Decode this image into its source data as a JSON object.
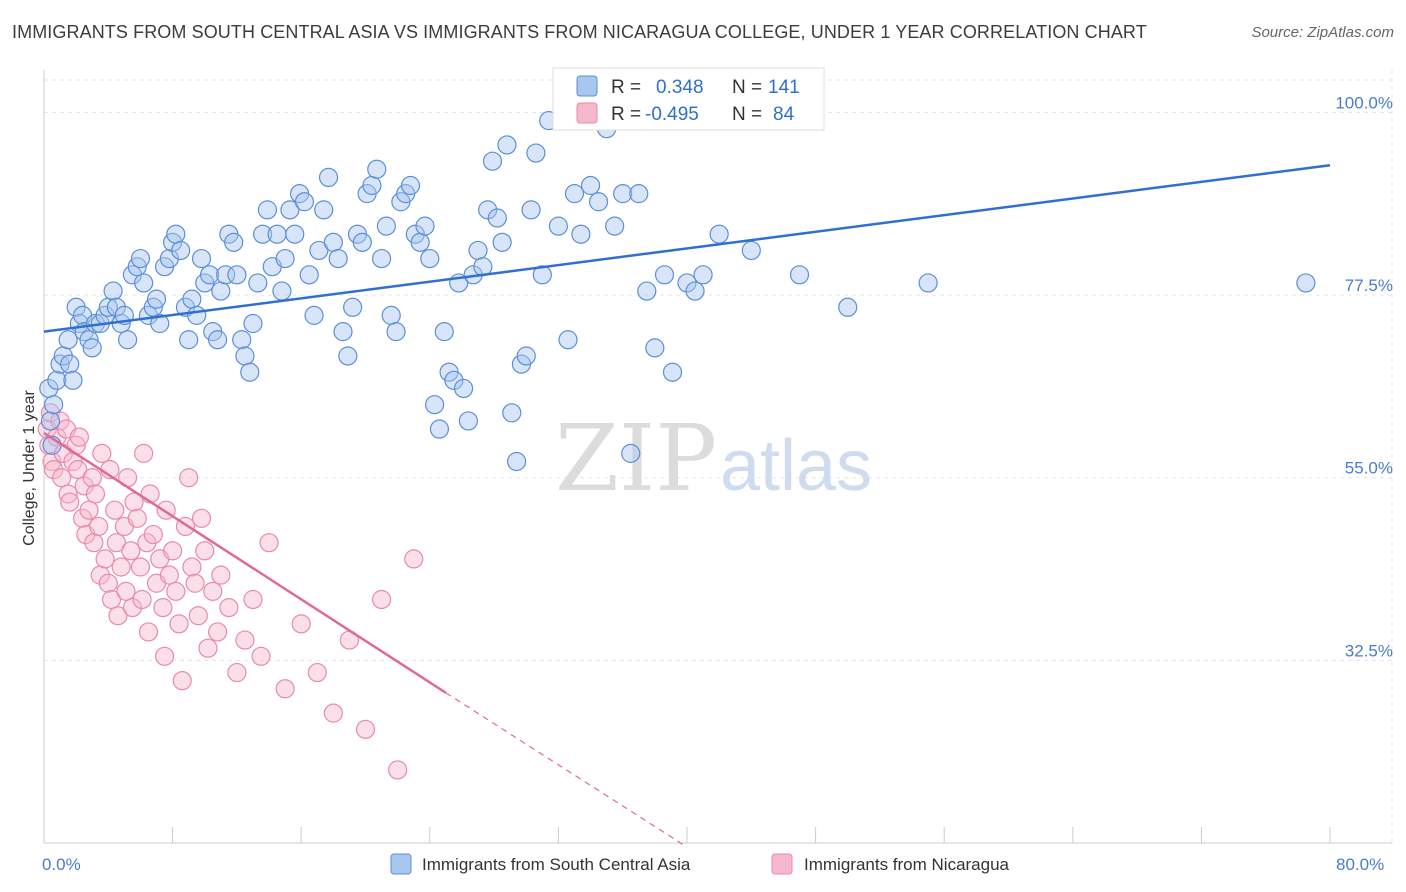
{
  "header": {
    "title": "IMMIGRANTS FROM SOUTH CENTRAL ASIA VS IMMIGRANTS FROM NICARAGUA COLLEGE, UNDER 1 YEAR CORRELATION CHART",
    "source": "Source: ZipAtlas.com"
  },
  "watermark": {
    "zip": "ZIP",
    "atlas": "atlas"
  },
  "legend": {
    "r_label": "R =",
    "n_label": "N =",
    "blue": {
      "r": "0.348",
      "n": "141"
    },
    "pink": {
      "r": "-0.495",
      "n": "84"
    }
  },
  "colors": {
    "blue_fill": "#a9c6ef",
    "blue_stroke": "#5b8fd8",
    "blue_line": "#2f6fd0",
    "pink_fill": "#f6b9cc",
    "pink_stroke": "#e98aaa",
    "pink_line": "#e06a93"
  },
  "chart_data": {
    "type": "scatter",
    "title": "IMMIGRANTS FROM SOUTH CENTRAL ASIA VS IMMIGRANTS FROM NICARAGUA COLLEGE, UNDER 1 YEAR CORRELATION CHART",
    "xlabel": "",
    "ylabel": "College, Under 1 year",
    "xlim": [
      0,
      80
    ],
    "ylim": [
      10,
      104
    ],
    "x_tick_labels": [
      "0.0%",
      "80.0%"
    ],
    "y_ticks": [
      32.5,
      55.0,
      77.5,
      100.0
    ],
    "y_tick_labels": [
      "32.5%",
      "55.0%",
      "77.5%",
      "100.0%"
    ],
    "grid": true,
    "legend_position": "top-center",
    "series": [
      {
        "name": "Immigrants from South Central Asia",
        "color": "#5b8fd8",
        "trend": {
          "x": [
            0,
            80
          ],
          "y": [
            73.0,
            93.5
          ]
        },
        "points": [
          [
            0.3,
            66
          ],
          [
            0.4,
            62
          ],
          [
            0.5,
            59
          ],
          [
            0.6,
            64
          ],
          [
            0.8,
            67
          ],
          [
            1.0,
            69
          ],
          [
            1.2,
            70
          ],
          [
            1.5,
            72
          ],
          [
            1.6,
            69
          ],
          [
            1.8,
            67
          ],
          [
            2.0,
            76
          ],
          [
            2.2,
            74
          ],
          [
            2.4,
            75
          ],
          [
            2.5,
            73
          ],
          [
            2.8,
            72
          ],
          [
            3.0,
            71
          ],
          [
            3.2,
            74
          ],
          [
            3.5,
            74
          ],
          [
            3.8,
            75
          ],
          [
            4.0,
            76
          ],
          [
            4.3,
            78
          ],
          [
            4.5,
            76
          ],
          [
            4.8,
            74
          ],
          [
            5.0,
            75
          ],
          [
            5.2,
            72
          ],
          [
            5.5,
            80
          ],
          [
            5.8,
            81
          ],
          [
            6.0,
            82
          ],
          [
            6.2,
            79
          ],
          [
            6.5,
            75
          ],
          [
            6.8,
            76
          ],
          [
            7.0,
            77
          ],
          [
            7.2,
            74
          ],
          [
            7.5,
            81
          ],
          [
            7.8,
            82
          ],
          [
            8.0,
            84
          ],
          [
            8.2,
            85
          ],
          [
            8.5,
            83
          ],
          [
            8.8,
            76
          ],
          [
            9.0,
            72
          ],
          [
            9.2,
            77
          ],
          [
            9.5,
            75
          ],
          [
            9.8,
            82
          ],
          [
            10.0,
            79
          ],
          [
            10.3,
            80
          ],
          [
            10.5,
            73
          ],
          [
            10.8,
            72
          ],
          [
            11.0,
            78
          ],
          [
            11.3,
            80
          ],
          [
            11.5,
            85
          ],
          [
            11.8,
            84
          ],
          [
            12.0,
            80
          ],
          [
            12.3,
            72
          ],
          [
            12.5,
            70
          ],
          [
            12.8,
            68
          ],
          [
            13.0,
            74
          ],
          [
            13.3,
            79
          ],
          [
            13.6,
            85
          ],
          [
            13.9,
            88
          ],
          [
            14.2,
            81
          ],
          [
            14.5,
            85
          ],
          [
            14.8,
            78
          ],
          [
            15.0,
            82
          ],
          [
            15.3,
            88
          ],
          [
            15.6,
            85
          ],
          [
            15.9,
            90
          ],
          [
            16.2,
            89
          ],
          [
            16.5,
            80
          ],
          [
            16.8,
            75
          ],
          [
            17.1,
            83
          ],
          [
            17.4,
            88
          ],
          [
            17.7,
            92
          ],
          [
            18.0,
            84
          ],
          [
            18.3,
            82
          ],
          [
            18.6,
            73
          ],
          [
            18.9,
            70
          ],
          [
            19.2,
            76
          ],
          [
            19.5,
            85
          ],
          [
            19.8,
            84
          ],
          [
            20.1,
            90
          ],
          [
            20.4,
            91
          ],
          [
            20.7,
            93
          ],
          [
            21.0,
            82
          ],
          [
            21.3,
            86
          ],
          [
            21.6,
            75
          ],
          [
            21.9,
            73
          ],
          [
            22.2,
            89
          ],
          [
            22.5,
            90
          ],
          [
            22.8,
            91
          ],
          [
            23.1,
            85
          ],
          [
            23.4,
            84
          ],
          [
            23.7,
            86
          ],
          [
            24.0,
            82
          ],
          [
            24.3,
            64
          ],
          [
            24.6,
            61
          ],
          [
            24.9,
            73
          ],
          [
            25.2,
            68
          ],
          [
            25.5,
            67
          ],
          [
            25.8,
            79
          ],
          [
            26.1,
            66
          ],
          [
            26.4,
            62
          ],
          [
            26.7,
            80
          ],
          [
            27.0,
            83
          ],
          [
            27.3,
            81
          ],
          [
            27.6,
            88
          ],
          [
            27.9,
            94
          ],
          [
            28.2,
            87
          ],
          [
            28.5,
            84
          ],
          [
            28.8,
            96
          ],
          [
            29.1,
            63
          ],
          [
            29.4,
            57
          ],
          [
            29.7,
            69
          ],
          [
            30.0,
            70
          ],
          [
            30.3,
            88
          ],
          [
            30.6,
            95
          ],
          [
            31.0,
            80
          ],
          [
            31.4,
            99
          ],
          [
            32.0,
            86
          ],
          [
            32.6,
            72
          ],
          [
            33.0,
            90
          ],
          [
            33.4,
            85
          ],
          [
            34.0,
            91
          ],
          [
            34.5,
            89
          ],
          [
            35.0,
            98
          ],
          [
            35.5,
            86
          ],
          [
            36.0,
            90
          ],
          [
            36.5,
            58
          ],
          [
            37.0,
            90
          ],
          [
            37.5,
            78
          ],
          [
            38.0,
            71
          ],
          [
            38.6,
            80
          ],
          [
            39.1,
            68
          ],
          [
            40.0,
            79
          ],
          [
            40.5,
            78
          ],
          [
            41.0,
            80
          ],
          [
            42.0,
            85
          ],
          [
            44.0,
            83
          ],
          [
            47.0,
            80
          ],
          [
            50.0,
            76
          ],
          [
            55.0,
            79
          ],
          [
            78.5,
            79
          ]
        ]
      },
      {
        "name": "Immigrants from Nicaragua",
        "color": "#e98aaa",
        "trend": {
          "x": [
            0,
            25
          ],
          "y": [
            60.5,
            28.5
          ],
          "dashed_to": {
            "x": 40,
            "y": 9.5
          }
        },
        "points": [
          [
            0.2,
            61
          ],
          [
            0.3,
            59
          ],
          [
            0.4,
            63
          ],
          [
            0.5,
            57
          ],
          [
            0.6,
            56
          ],
          [
            0.8,
            60
          ],
          [
            1.0,
            62
          ],
          [
            1.1,
            55
          ],
          [
            1.2,
            58
          ],
          [
            1.4,
            61
          ],
          [
            1.5,
            53
          ],
          [
            1.6,
            52
          ],
          [
            1.8,
            57
          ],
          [
            2.0,
            59
          ],
          [
            2.1,
            56
          ],
          [
            2.2,
            60
          ],
          [
            2.4,
            50
          ],
          [
            2.5,
            54
          ],
          [
            2.6,
            48
          ],
          [
            2.8,
            51
          ],
          [
            3.0,
            55
          ],
          [
            3.1,
            47
          ],
          [
            3.2,
            53
          ],
          [
            3.4,
            49
          ],
          [
            3.5,
            43
          ],
          [
            3.6,
            58
          ],
          [
            3.8,
            45
          ],
          [
            4.0,
            42
          ],
          [
            4.1,
            56
          ],
          [
            4.2,
            40
          ],
          [
            4.4,
            51
          ],
          [
            4.5,
            47
          ],
          [
            4.6,
            38
          ],
          [
            4.8,
            44
          ],
          [
            5.0,
            49
          ],
          [
            5.1,
            41
          ],
          [
            5.2,
            55
          ],
          [
            5.4,
            46
          ],
          [
            5.5,
            39
          ],
          [
            5.6,
            52
          ],
          [
            5.8,
            50
          ],
          [
            6.0,
            44
          ],
          [
            6.1,
            40
          ],
          [
            6.2,
            58
          ],
          [
            6.4,
            47
          ],
          [
            6.5,
            36
          ],
          [
            6.6,
            53
          ],
          [
            6.8,
            48
          ],
          [
            7.0,
            42
          ],
          [
            7.2,
            45
          ],
          [
            7.4,
            39
          ],
          [
            7.5,
            33
          ],
          [
            7.6,
            51
          ],
          [
            7.8,
            43
          ],
          [
            8.0,
            46
          ],
          [
            8.2,
            41
          ],
          [
            8.4,
            37
          ],
          [
            8.6,
            30
          ],
          [
            8.8,
            49
          ],
          [
            9.0,
            55
          ],
          [
            9.2,
            44
          ],
          [
            9.4,
            42
          ],
          [
            9.6,
            38
          ],
          [
            9.8,
            50
          ],
          [
            10.0,
            46
          ],
          [
            10.2,
            34
          ],
          [
            10.5,
            41
          ],
          [
            10.8,
            36
          ],
          [
            11.0,
            43
          ],
          [
            11.5,
            39
          ],
          [
            12.0,
            31
          ],
          [
            12.5,
            35
          ],
          [
            13.0,
            40
          ],
          [
            13.5,
            33
          ],
          [
            14.0,
            47
          ],
          [
            15.0,
            29
          ],
          [
            16.0,
            37
          ],
          [
            17.0,
            31
          ],
          [
            18.0,
            26
          ],
          [
            19.0,
            35
          ],
          [
            20.0,
            24
          ],
          [
            21.0,
            40
          ],
          [
            22.0,
            19
          ],
          [
            23.0,
            45
          ]
        ]
      }
    ]
  },
  "bottom_legend": {
    "blue": "Immigrants from South Central Asia",
    "pink": "Immigrants from Nicaragua"
  }
}
